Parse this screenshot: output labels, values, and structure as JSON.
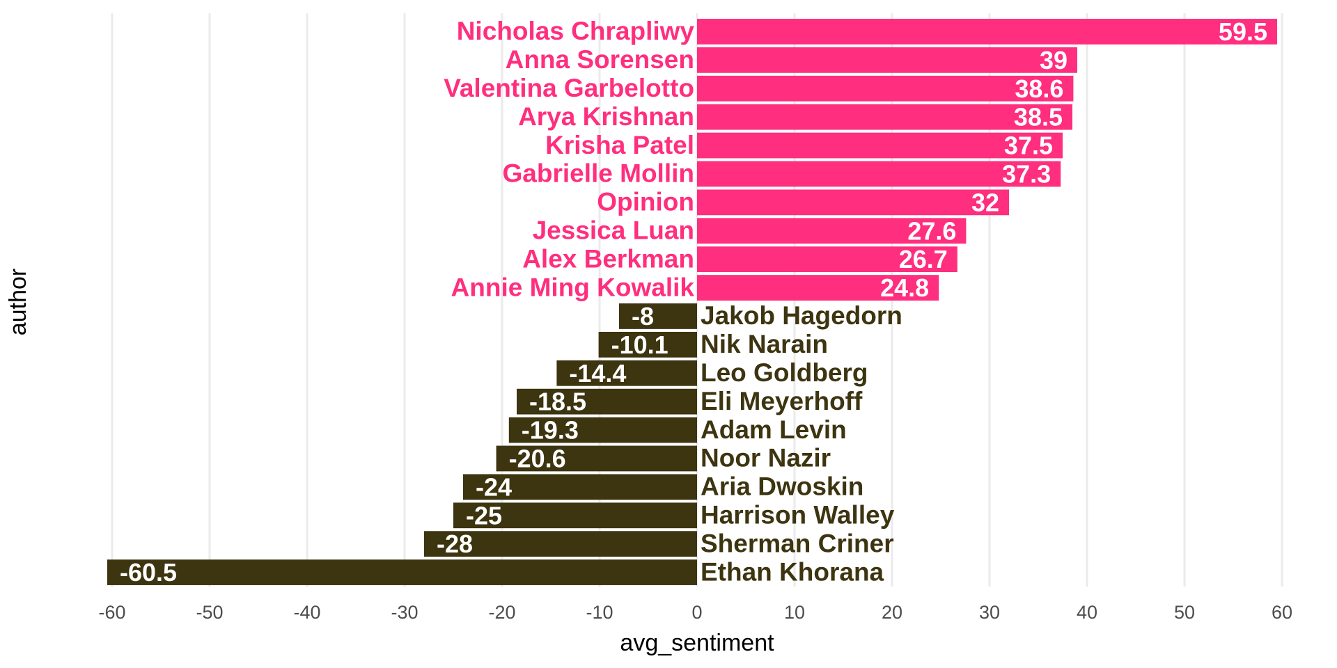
{
  "chart_data": {
    "type": "bar",
    "orientation": "horizontal",
    "x_label": "avg_sentiment",
    "y_label": "author",
    "categories": [
      "Nicholas Chrapliwy",
      "Anna Sorensen",
      "Valentina Garbelotto",
      "Arya Krishnan",
      "Krisha Patel",
      "Gabrielle Mollin",
      "Opinion",
      "Jessica Luan",
      "Alex Berkman",
      "Annie Ming Kowalik",
      "Jakob Hagedorn",
      "Nik Narain",
      "Leo Goldberg",
      "Eli Meyerhoff",
      "Adam Levin",
      "Noor Nazir",
      "Aria Dwoskin",
      "Harrison Walley",
      "Sherman Criner",
      "Ethan Khorana"
    ],
    "values": [
      59.5,
      39,
      38.6,
      38.5,
      37.5,
      37.3,
      32,
      27.6,
      26.7,
      24.8,
      -8,
      -10.1,
      -14.4,
      -18.5,
      -19.3,
      -20.6,
      -24,
      -25,
      -28,
      -60.5
    ],
    "colors": {
      "positive": "#ff2e7e",
      "negative": "#3d3410"
    },
    "xlim": [
      -63,
      62
    ],
    "xticks": [
      -60,
      -50,
      -40,
      -30,
      -20,
      -10,
      0,
      10,
      20,
      30,
      40,
      50,
      60
    ],
    "grid": true
  }
}
